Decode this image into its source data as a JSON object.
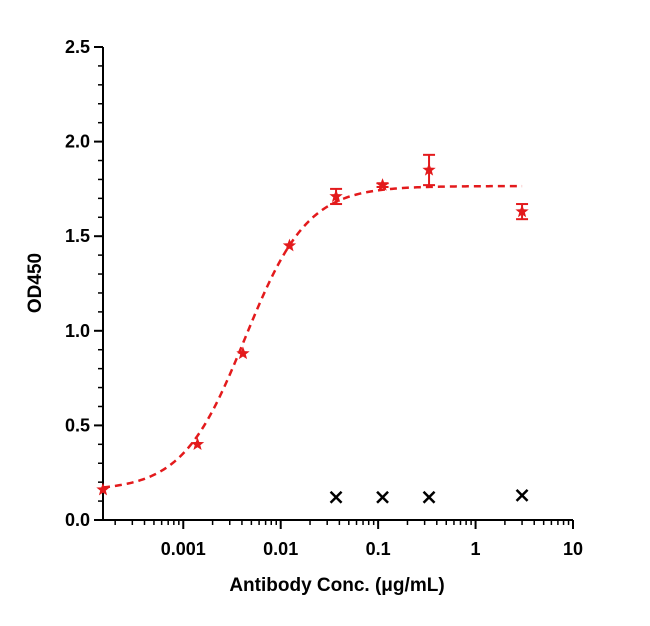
{
  "chart_data": {
    "type": "scatter",
    "xlabel": "Antibody Conc. (μg/mL)",
    "ylabel": "OD450",
    "xscale": "log",
    "xlim": [
      0.00015,
      10
    ],
    "ylim": [
      0,
      2.5
    ],
    "x_tick_labels": [
      "0.001",
      "0.01",
      "0.1",
      "1",
      "10"
    ],
    "y_tick_labels": [
      "0.0",
      "0.5",
      "1.0",
      "1.5",
      "2.0",
      "2.5"
    ],
    "grid": false,
    "legend": "none",
    "series": [
      {
        "color": "#e31a1c",
        "marker": "star",
        "fit": "4PL dashed",
        "points": [
          {
            "x": 0.00015,
            "y": 0.16,
            "err": 0
          },
          {
            "x": 0.0014,
            "y": 0.4,
            "err": 0
          },
          {
            "x": 0.0041,
            "y": 0.88,
            "err": 0
          },
          {
            "x": 0.0123,
            "y": 1.45,
            "err": 0
          },
          {
            "x": 0.037,
            "y": 1.71,
            "err": 0.04
          },
          {
            "x": 0.111,
            "y": 1.77,
            "err": 0.01
          },
          {
            "x": 0.333,
            "y": 1.85,
            "err": 0.08
          },
          {
            "x": 3.0,
            "y": 1.63,
            "err": 0.04
          }
        ]
      },
      {
        "color": "#000000",
        "marker": "x",
        "fit": "none",
        "points": [
          {
            "x": 0.037,
            "y": 0.12
          },
          {
            "x": 0.111,
            "y": 0.12
          },
          {
            "x": 0.333,
            "y": 0.12
          },
          {
            "x": 3.0,
            "y": 0.13
          }
        ]
      }
    ]
  }
}
